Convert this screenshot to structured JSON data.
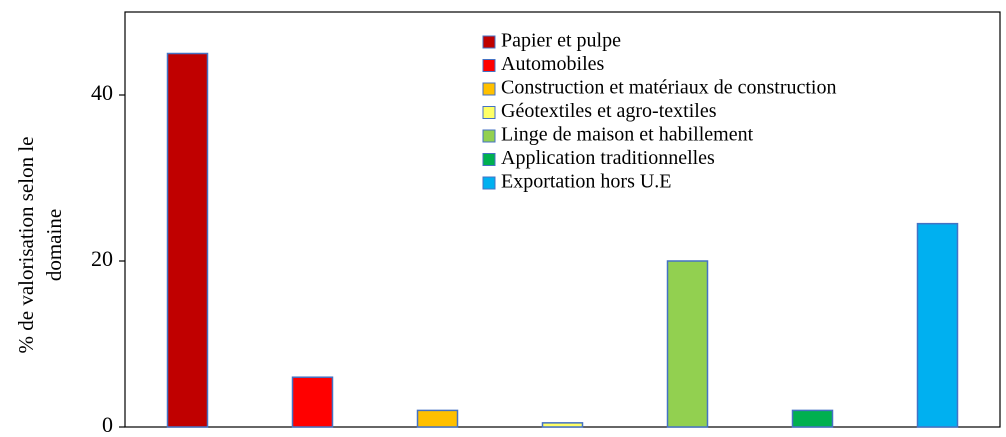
{
  "chart_data": {
    "type": "bar",
    "ylabel": [
      "% de valorisation selon le",
      "domaine"
    ],
    "categories": [
      null,
      null,
      null,
      null,
      null,
      null,
      null
    ],
    "series": [
      {
        "name": "Papier et pulpe",
        "color": "#c00000",
        "values": [
          45,
          null,
          null,
          null,
          null,
          null,
          null
        ]
      },
      {
        "name": "Automobiles",
        "color": "#ff0000",
        "values": [
          null,
          6,
          null,
          null,
          null,
          null,
          null
        ]
      },
      {
        "name": "Construction et matériaux de construction",
        "color": "#ffc000",
        "values": [
          null,
          null,
          2,
          null,
          null,
          null,
          null
        ]
      },
      {
        "name": "Géotextiles et agro-textiles",
        "color": "#ffff66",
        "values": [
          null,
          null,
          null,
          0.5,
          null,
          null,
          null
        ]
      },
      {
        "name": "Linge de maison et habillement",
        "color": "#92d050",
        "values": [
          null,
          null,
          null,
          null,
          20,
          null,
          null
        ]
      },
      {
        "name": "Application traditionnelles",
        "color": "#00b050",
        "values": [
          null,
          null,
          null,
          null,
          null,
          2,
          null
        ]
      },
      {
        "name": "Exportation hors U.E",
        "color": "#00b0f0",
        "values": [
          null,
          null,
          null,
          null,
          null,
          null,
          24.5
        ]
      }
    ],
    "ylim": [
      0,
      50
    ],
    "yticks": [
      0,
      20,
      40
    ],
    "grid": false,
    "legend": "top-right"
  }
}
